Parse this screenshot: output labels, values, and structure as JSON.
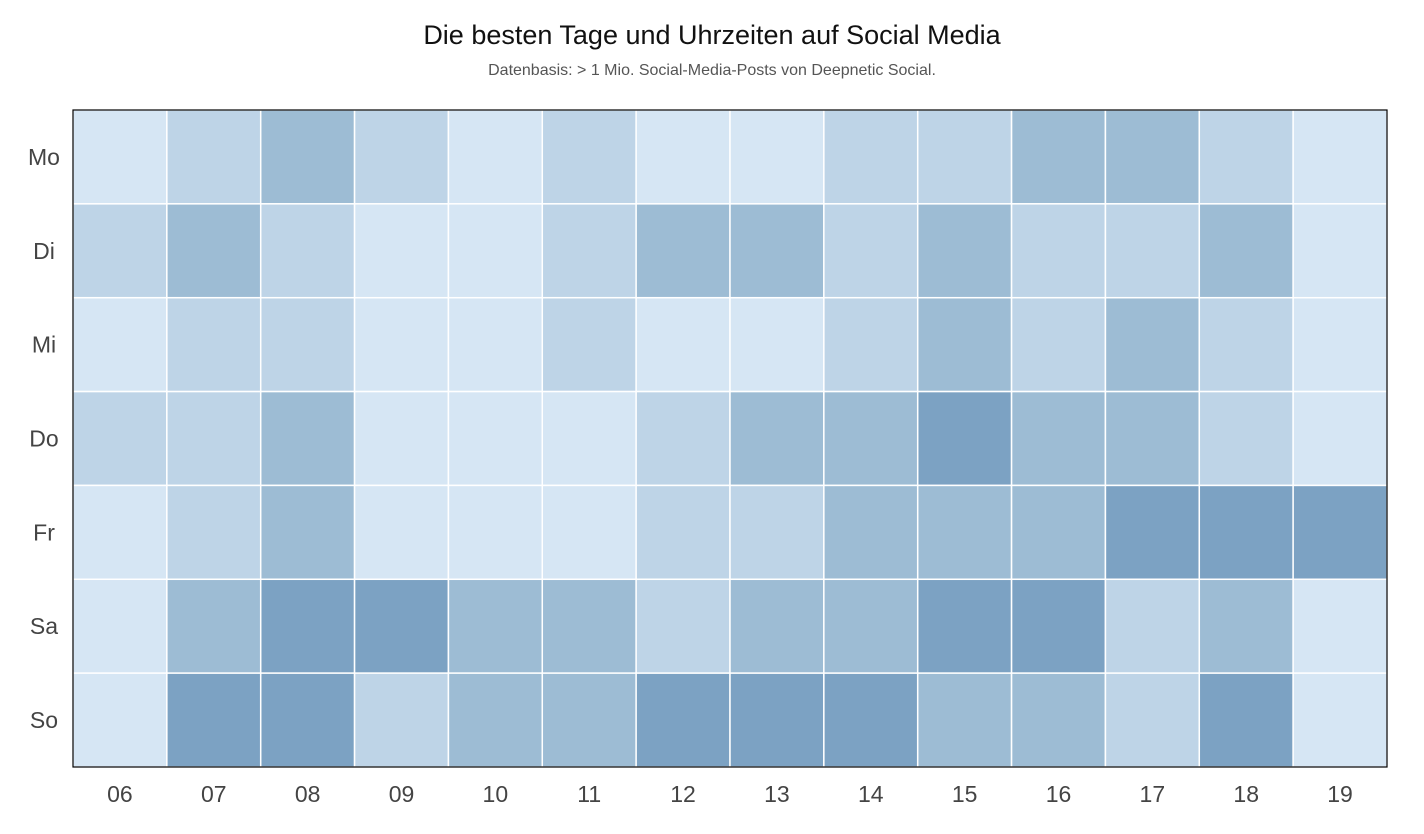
{
  "chart_data": {
    "type": "heatmap",
    "title": "Die besten Tage und Uhrzeiten auf Social Media",
    "subtitle": "Datenbasis: > 1 Mio. Social-Media-Posts von Deepnetic Social.",
    "x_categories": [
      "06",
      "07",
      "08",
      "09",
      "10",
      "11",
      "12",
      "13",
      "14",
      "15",
      "16",
      "17",
      "18",
      "19"
    ],
    "y_categories": [
      "Mo",
      "Di",
      "Mi",
      "Do",
      "Fr",
      "Sa",
      "So"
    ],
    "value_scale": [
      0,
      3
    ],
    "values": [
      [
        0,
        1,
        2,
        1,
        0,
        1,
        0,
        0,
        1,
        1,
        2,
        2,
        1,
        0
      ],
      [
        1,
        2,
        1,
        0,
        0,
        1,
        2,
        2,
        1,
        2,
        1,
        1,
        2,
        0
      ],
      [
        0,
        1,
        1,
        0,
        0,
        1,
        0,
        0,
        1,
        2,
        1,
        2,
        1,
        0
      ],
      [
        1,
        1,
        2,
        0,
        0,
        0,
        1,
        2,
        2,
        3,
        2,
        2,
        1,
        0
      ],
      [
        0,
        1,
        2,
        0,
        0,
        0,
        1,
        1,
        2,
        2,
        2,
        3,
        3,
        3
      ],
      [
        0,
        2,
        3,
        3,
        2,
        2,
        1,
        2,
        2,
        3,
        3,
        1,
        2,
        0
      ],
      [
        0,
        3,
        3,
        1,
        2,
        2,
        3,
        3,
        3,
        2,
        2,
        1,
        3,
        0
      ]
    ],
    "colors": [
      "#d6e6f4",
      "#bed4e7",
      "#9dbcd4",
      "#7ca2c3"
    ],
    "grid_line_color": "#ffffff",
    "frame_color": "#000000"
  }
}
